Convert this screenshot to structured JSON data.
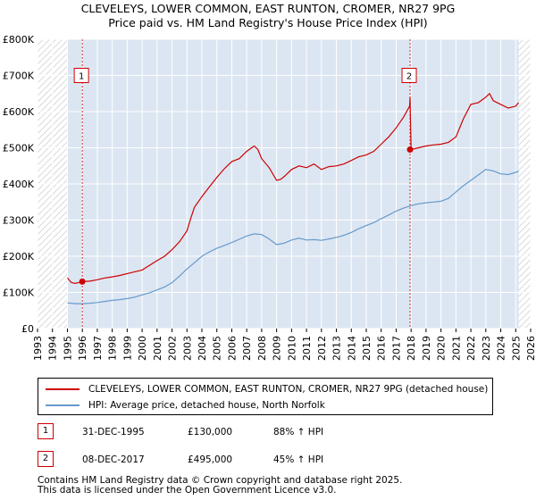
{
  "header": {
    "title": "CLEVELEYS, LOWER COMMON, EAST RUNTON, CROMER, NR27 9PG",
    "subtitle": "Price paid vs. HM Land Registry's House Price Index (HPI)"
  },
  "legend": {
    "property_label": "CLEVELEYS, LOWER COMMON, EAST RUNTON, CROMER, NR27 9PG (detached house)",
    "hpi_label": "HPI: Average price, detached house, North Norfolk"
  },
  "transactions": [
    {
      "num": "1",
      "date": "31-DEC-1995",
      "price": "£130,000",
      "hpi": "88% ↑ HPI"
    },
    {
      "num": "2",
      "date": "08-DEC-2017",
      "price": "£495,000",
      "hpi": "45% ↑ HPI"
    }
  ],
  "footer": {
    "line1": "Contains HM Land Registry data © Crown copyright and database right 2025.",
    "line2": "This data is licensed under the Open Government Licence v3.0."
  },
  "colors": {
    "property": "#cc0000",
    "hpi": "#6699cc",
    "background": "#dce6f2",
    "hatch": "#d9d9d9",
    "grid": "#ffffff"
  },
  "chart_data": {
    "type": "line",
    "title": "CLEVELEYS, LOWER COMMON, EAST RUNTON, CROMER, NR27 9PG",
    "subtitle": "Price paid vs. HM Land Registry's House Price Index (HPI)",
    "xlabel": "",
    "ylabel": "",
    "xlim": [
      1993,
      2026
    ],
    "ylim": [
      0,
      800000
    ],
    "data_range": [
      1995,
      2025.2
    ],
    "x_ticks": [
      "1993",
      "1994",
      "1995",
      "1996",
      "1997",
      "1998",
      "1999",
      "2000",
      "2001",
      "2002",
      "2003",
      "2004",
      "2005",
      "2006",
      "2007",
      "2008",
      "2009",
      "2010",
      "2011",
      "2012",
      "2013",
      "2014",
      "2015",
      "2016",
      "2017",
      "2018",
      "2019",
      "2020",
      "2021",
      "2022",
      "2023",
      "2024",
      "2025",
      "2026"
    ],
    "y_ticks": [
      {
        "value": 0,
        "label": "£0"
      },
      {
        "value": 100000,
        "label": "£100K"
      },
      {
        "value": 200000,
        "label": "£200K"
      },
      {
        "value": 300000,
        "label": "£300K"
      },
      {
        "value": 400000,
        "label": "£400K"
      },
      {
        "value": 500000,
        "label": "£500K"
      },
      {
        "value": 600000,
        "label": "£600K"
      },
      {
        "value": 700000,
        "label": "£700K"
      },
      {
        "value": 800000,
        "label": "£800K"
      }
    ],
    "series": [
      {
        "name": "CLEVELEYS, LOWER COMMON, EAST RUNTON, CROMER, NR27 9PG (detached house)",
        "color": "#cc0000",
        "x": [
          1995.0,
          1995.25,
          1995.5,
          1995.75,
          1996.0,
          1996.5,
          1997.0,
          1997.5,
          1998.0,
          1998.5,
          1999.0,
          1999.5,
          2000.0,
          2000.5,
          2001.0,
          2001.5,
          2002.0,
          2002.5,
          2003.0,
          2003.25,
          2003.5,
          2004.0,
          2004.5,
          2005.0,
          2005.5,
          2006.0,
          2006.5,
          2007.0,
          2007.5,
          2007.75,
          2008.0,
          2008.5,
          2009.0,
          2009.25,
          2009.5,
          2010.0,
          2010.5,
          2011.0,
          2011.5,
          2012.0,
          2012.5,
          2013.0,
          2013.5,
          2014.0,
          2014.5,
          2015.0,
          2015.5,
          2016.0,
          2016.5,
          2017.0,
          2017.5,
          2017.9,
          2017.93,
          2018.0,
          2018.5,
          2019.0,
          2019.5,
          2020.0,
          2020.5,
          2021.0,
          2021.5,
          2022.0,
          2022.5,
          2023.0,
          2023.25,
          2023.5,
          2024.0,
          2024.5,
          2025.0,
          2025.2
        ],
        "y": [
          140000,
          128000,
          125000,
          127000,
          130000,
          131000,
          135000,
          140000,
          143000,
          147000,
          152000,
          157000,
          162000,
          175000,
          188000,
          200000,
          218000,
          240000,
          270000,
          305000,
          335000,
          365000,
          392000,
          418000,
          442000,
          462000,
          470000,
          490000,
          505000,
          495000,
          470000,
          445000,
          410000,
          412000,
          420000,
          440000,
          450000,
          445000,
          455000,
          440000,
          448000,
          450000,
          455000,
          465000,
          475000,
          480000,
          490000,
          510000,
          530000,
          555000,
          585000,
          615000,
          640000,
          495000,
          500000,
          505000,
          508000,
          510000,
          515000,
          530000,
          580000,
          620000,
          625000,
          640000,
          650000,
          630000,
          620000,
          610000,
          615000,
          625000
        ]
      },
      {
        "name": "HPI: Average price, detached house, North Norfolk",
        "color": "#6699cc",
        "x": [
          1995.0,
          1995.5,
          1996.0,
          1996.5,
          1997.0,
          1997.5,
          1998.0,
          1998.5,
          1999.0,
          1999.5,
          2000.0,
          2000.5,
          2001.0,
          2001.5,
          2002.0,
          2002.5,
          2003.0,
          2003.5,
          2004.0,
          2004.5,
          2005.0,
          2005.5,
          2006.0,
          2006.5,
          2007.0,
          2007.5,
          2008.0,
          2008.5,
          2009.0,
          2009.5,
          2010.0,
          2010.5,
          2011.0,
          2011.5,
          2012.0,
          2012.5,
          2013.0,
          2013.5,
          2014.0,
          2014.5,
          2015.0,
          2015.5,
          2016.0,
          2016.5,
          2017.0,
          2017.5,
          2018.0,
          2018.5,
          2019.0,
          2019.5,
          2020.0,
          2020.5,
          2021.0,
          2021.5,
          2022.0,
          2022.5,
          2023.0,
          2023.5,
          2024.0,
          2024.5,
          2025.0,
          2025.2
        ],
        "y": [
          71000,
          69000,
          69000,
          70000,
          72000,
          75000,
          78000,
          80000,
          83000,
          87000,
          93000,
          99000,
          107000,
          115000,
          127000,
          145000,
          165000,
          182000,
          200000,
          212000,
          222000,
          230000,
          238000,
          247000,
          256000,
          262000,
          260000,
          248000,
          232000,
          236000,
          245000,
          250000,
          245000,
          246000,
          244000,
          248000,
          252000,
          258000,
          266000,
          276000,
          285000,
          293000,
          304000,
          314000,
          325000,
          333000,
          340000,
          345000,
          348000,
          350000,
          352000,
          360000,
          378000,
          395000,
          410000,
          425000,
          440000,
          436000,
          428000,
          426000,
          432000,
          435000
        ]
      }
    ],
    "annotations": [
      {
        "label": "1",
        "x": 1995.997,
        "y": 130000,
        "box_y": 700000
      },
      {
        "label": "2",
        "x": 2017.93,
        "y": 495000,
        "box_y": 700000
      }
    ]
  }
}
